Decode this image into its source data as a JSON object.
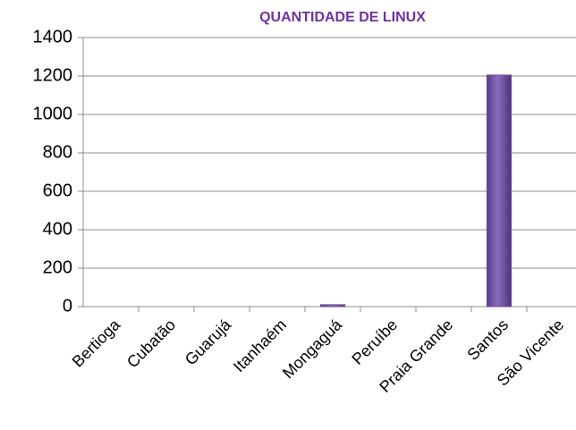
{
  "chart_data": {
    "type": "bar",
    "title": "QUANTIDADE DE LINUX",
    "categories": [
      "Bertioga",
      "Cubatão",
      "Guarujá",
      "Itanhaém",
      "Mongaguá",
      "Peruíbe",
      "Praia Grande",
      "Santos",
      "São Vicente"
    ],
    "values": [
      0,
      0,
      0,
      0,
      10,
      0,
      0,
      1205,
      0
    ],
    "color": "#6e4f9e",
    "ylim": [
      0,
      1400
    ],
    "yticks": [
      0,
      200,
      400,
      600,
      800,
      1000,
      1200,
      1400
    ],
    "grid": true
  }
}
